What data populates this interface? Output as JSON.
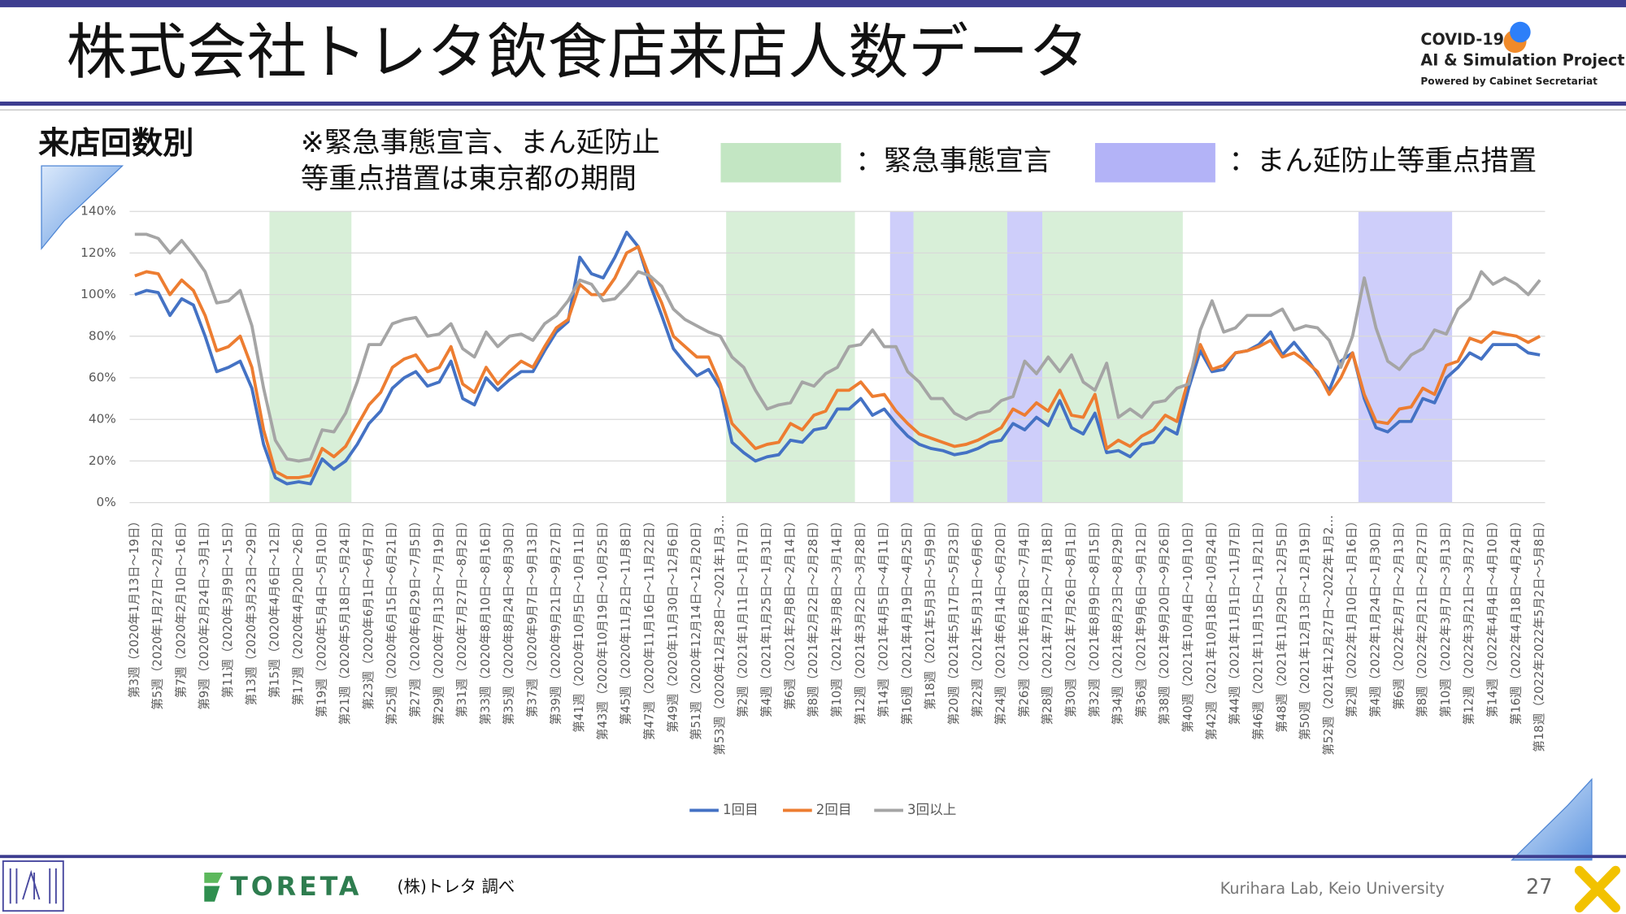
{
  "header": {
    "title": "株式会社トレタ飲食店来店人数データ",
    "logo": [
      "COVID-19",
      "AI & Simulation Project",
      "Powered by Cabinet Secretariat"
    ]
  },
  "chart_data": {
    "type": "line",
    "subtitle": "来店回数別",
    "note": [
      "※緊急事態宣言、まん延防止",
      "等重点措置は東京都の期間"
    ],
    "categories": [
      "第3週（2020年1月13日～19日）",
      null,
      "第5週（2020年1月27日～2月2日）",
      null,
      "第7週（2020年2月10日～16日）",
      null,
      "第9週（2020年2月24日～3月1日）",
      null,
      "第11週（2020年3月9日～15日）",
      null,
      "第13週（2020年3月23日～29日）",
      null,
      "第15週（2020年4月6日～12日）",
      null,
      "第17週（2020年4月20日～26日）",
      null,
      "第19週（2020年5月4日～5月10日）",
      null,
      "第21週（2020年5月18日～5月24日）",
      null,
      "第23週（2020年6月1日～6月7日）",
      null,
      "第25週（2020年6月15日～6月21日）",
      null,
      "第27週（2020年6月29日～7月5日）",
      null,
      "第29週（2020年7月13日～7月19日）",
      null,
      "第31週（2020年7月27日～8月2日）",
      null,
      "第33週（2020年8月10日～8月16日）",
      null,
      "第35週（2020年8月24日～8月30日）",
      null,
      "第37週（2020年9月7日～9月13日）",
      null,
      "第39週（2020年9月21日～9月27日）",
      null,
      "第41週（2020年10月5日～10月11日）",
      null,
      "第43週（2020年10月19日～10月25日）",
      null,
      "第45週（2020年11月2日～11月8日）",
      null,
      "第47週（2020年11月16日～11月22日）",
      null,
      "第49週（2020年11月30日～12月6日）",
      null,
      "第51週（2020年12月14日～12月20日）",
      null,
      "第53週（2020年12月28日～2021年1月3…",
      null,
      "第2週（2021年1月11日～1月17日）",
      null,
      "第4週（2021年1月25日～1月31日）",
      null,
      "第6週（2021年2月8日～2月14日）",
      null,
      "第8週（2021年2月22日～2月28日）",
      null,
      "第10週（2021年3月8日～3月14日）",
      null,
      "第12週（2021年3月22日～3月28日）",
      null,
      "第14週（2021年4月5日～4月11日）",
      null,
      "第16週（2021年4月19日～4月25日）",
      null,
      "第18週（2021年5月3日～5月9日）",
      null,
      "第20週（2021年5月17日～5月23日）",
      null,
      "第22週（2021年5月31日～6月6日）",
      null,
      "第24週（2021年6月14日～6月20日）",
      null,
      "第26週（2021年6月28日～7月4日）",
      null,
      "第28週（2021年7月12日～7月18日）",
      null,
      "第30週（2021年7月26日～8月1日）",
      null,
      "第32週（2021年8月9日～8月15日）",
      null,
      "第34週（2021年8月23日～8月29日）",
      null,
      "第36週（2021年9月6日～9月12日）",
      null,
      "第38週（2021年9月20日～9月26日）",
      null,
      "第40週（2021年10月4日～10月10日）",
      null,
      "第42週（2021年10月18日～10月24日）",
      null,
      "第44週（2021年11月1日～11月7日）",
      null,
      "第46週（2021年11月15日～11月21日）",
      null,
      "第48週（2021年11月29日～12月5日）",
      null,
      "第50週（2021年12月13日～12月19日）",
      null,
      "第52週（2021年12月27日～2022年1月2…",
      null,
      "第2週（2022年1月10日～1月16日）",
      null,
      "第4週（2022年1月24日～1月30日）",
      null,
      "第6週（2022年2月7日～2月13日）",
      null,
      "第8週（2022年2月21日～2月27日）",
      null,
      "第10週（2022年3月7日～3月13日）",
      null,
      "第12週（2022年3月21日～3月27日）",
      null,
      "第14週（2022年4月4日～4月10日）",
      null,
      "第16週（2022年4月18日～4月24日）",
      null,
      "第18週（2022年2022年5月2日～5月8日）"
    ],
    "series": [
      {
        "name": "1回目",
        "color": "#4472c4",
        "values": [
          100,
          102,
          101,
          90,
          98,
          95,
          80,
          63,
          65,
          68,
          55,
          28,
          12,
          9,
          10,
          9,
          21,
          16,
          20,
          28,
          38,
          44,
          55,
          60,
          63,
          56,
          58,
          68,
          50,
          47,
          60,
          54,
          59,
          63,
          63,
          73,
          82,
          87,
          118,
          110,
          108,
          118,
          130,
          123,
          105,
          90,
          74,
          67,
          61,
          64,
          55,
          29,
          24,
          20,
          22,
          23,
          30,
          29,
          35,
          36,
          45,
          45,
          50,
          42,
          45,
          38,
          32,
          28,
          26,
          25,
          23,
          24,
          26,
          29,
          30,
          38,
          35,
          41,
          37,
          49,
          36,
          33,
          43,
          24,
          25,
          22,
          28,
          29,
          36,
          33,
          55,
          73,
          63,
          64,
          72,
          73,
          76,
          82,
          71,
          77,
          70,
          62,
          54,
          68,
          72,
          50,
          36,
          34,
          39,
          39,
          50,
          48,
          60,
          65,
          72,
          69,
          76,
          76,
          76,
          72,
          71
        ]
      },
      {
        "name": "2回目",
        "color": "#ed7d31",
        "values": [
          109,
          111,
          110,
          100,
          107,
          102,
          90,
          73,
          75,
          80,
          65,
          35,
          15,
          12,
          12,
          13,
          26,
          22,
          27,
          37,
          47,
          53,
          65,
          69,
          71,
          63,
          65,
          75,
          57,
          53,
          65,
          57,
          63,
          68,
          65,
          75,
          84,
          88,
          105,
          100,
          100,
          108,
          120,
          123,
          108,
          96,
          80,
          75,
          70,
          70,
          57,
          38,
          32,
          26,
          28,
          29,
          38,
          35,
          42,
          44,
          54,
          54,
          58,
          51,
          52,
          44,
          38,
          33,
          31,
          29,
          27,
          28,
          30,
          33,
          36,
          45,
          42,
          48,
          44,
          54,
          42,
          41,
          52,
          26,
          30,
          27,
          32,
          35,
          42,
          39,
          60,
          76,
          64,
          66,
          72,
          73,
          75,
          78,
          70,
          72,
          68,
          63,
          52,
          60,
          72,
          52,
          39,
          38,
          45,
          46,
          55,
          52,
          66,
          68,
          79,
          77,
          82,
          81,
          80,
          77,
          80
        ]
      },
      {
        "name": "3回以上",
        "color": "#a5a5a5",
        "values": [
          129,
          129,
          127,
          120,
          126,
          119,
          111,
          96,
          97,
          102,
          85,
          55,
          30,
          21,
          20,
          21,
          35,
          34,
          43,
          58,
          76,
          76,
          86,
          88,
          89,
          80,
          81,
          86,
          74,
          70,
          82,
          75,
          80,
          81,
          78,
          86,
          90,
          97,
          107,
          105,
          97,
          98,
          104,
          111,
          109,
          104,
          93,
          88,
          85,
          82,
          80,
          70,
          65,
          54,
          45,
          47,
          48,
          58,
          56,
          62,
          65,
          75,
          76,
          83,
          75,
          75,
          63,
          58,
          50,
          50,
          43,
          40,
          43,
          44,
          49,
          51,
          68,
          62,
          70,
          63,
          71,
          58,
          54,
          67,
          41,
          45,
          41,
          48,
          49,
          55,
          57,
          83,
          97,
          82,
          84,
          90,
          90,
          90,
          93,
          83,
          85,
          84,
          78,
          65,
          80,
          108,
          84,
          68,
          64,
          71,
          74,
          83,
          81,
          93,
          98,
          111,
          105,
          108,
          105,
          100,
          107
        ]
      }
    ],
    "ylim": [
      0,
      140
    ],
    "yticks": [
      {
        "value": 0,
        "label": "0%"
      },
      {
        "value": 20,
        "label": "20%"
      },
      {
        "value": 40,
        "label": "40%"
      },
      {
        "value": 60,
        "label": "60%"
      },
      {
        "value": 80,
        "label": "80%"
      },
      {
        "value": 100,
        "label": "100%"
      },
      {
        "value": 120,
        "label": "120%"
      },
      {
        "value": 140,
        "label": "140%"
      }
    ],
    "grid": true,
    "shading": [
      {
        "label": "：緊急事態宣言",
        "color": "#c3e6c3",
        "ranges": [
          [
            11.5,
            18.5
          ],
          [
            50.5,
            61.5
          ],
          [
            66.5,
            74.5
          ],
          [
            77.5,
            89.5
          ]
        ]
      },
      {
        "label": "：まん延防止等重点措置",
        "color": "#b3b3f7",
        "ranges": [
          [
            64.5,
            66.5
          ],
          [
            74.5,
            77.5
          ],
          [
            104.5,
            112.5
          ]
        ]
      }
    ]
  },
  "footer": {
    "brand": "TORETA",
    "source": "(株)トレタ 調べ",
    "credit": "Kurihara Lab, Keio University",
    "page": "27"
  }
}
